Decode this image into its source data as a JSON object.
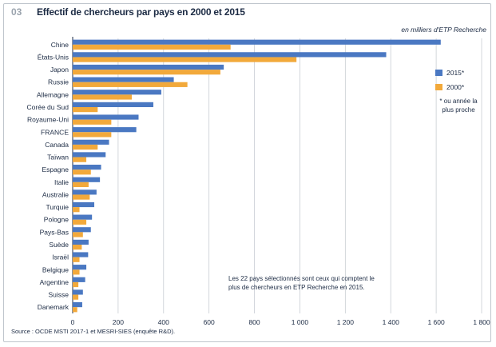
{
  "header": {
    "number": "03",
    "title": "Effectif de chercheurs par pays en 2000 et 2015",
    "unit_note": "en milliers d'ETP Recherche"
  },
  "legend": {
    "series_2015": "2015*",
    "series_2000": "2000*"
  },
  "footnote": "* ou année la plus proche",
  "annotation": "Les 22 pays sélectionnés sont ceux qui comptent le plus de chercheurs en ETP Recherche en 2015.",
  "source": "Source : OCDE MSTI 2017-1 et MESRI-SIES (enquête R&D).",
  "colors": {
    "c2015": "#4a78c2",
    "c2000": "#f2a93b",
    "grid": "#c8cdd3"
  },
  "chart_data": {
    "type": "bar",
    "orientation": "horizontal",
    "categories": [
      "Chine",
      "États-Unis",
      "Japon",
      "Russie",
      "Allemagne",
      "Corée du Sud",
      "Royaume-Uni",
      "FRANCE",
      "Canada",
      "Taïwan",
      "Espagne",
      "Italie",
      "Australie",
      "Turquie",
      "Pologne",
      "Pays-Bas",
      "Suède",
      "Israël",
      "Belgique",
      "Argentine",
      "Suisse",
      "Danemark"
    ],
    "series": [
      {
        "name": "2015*",
        "values": [
          1620,
          1380,
          665,
          445,
          390,
          355,
          290,
          280,
          160,
          145,
          125,
          120,
          105,
          95,
          85,
          80,
          70,
          68,
          60,
          55,
          45,
          42
        ]
      },
      {
        "name": "2000*",
        "values": [
          695,
          985,
          650,
          505,
          260,
          110,
          170,
          170,
          110,
          60,
          80,
          70,
          75,
          30,
          60,
          45,
          40,
          30,
          30,
          25,
          25,
          20
        ]
      }
    ],
    "xlim": [
      0,
      1800
    ],
    "xticks": [
      "0",
      "200",
      "400",
      "600",
      "800",
      "1 000",
      "1 200",
      "1 400",
      "1 600",
      "1 800"
    ],
    "grid": true,
    "legend_position": "right"
  }
}
